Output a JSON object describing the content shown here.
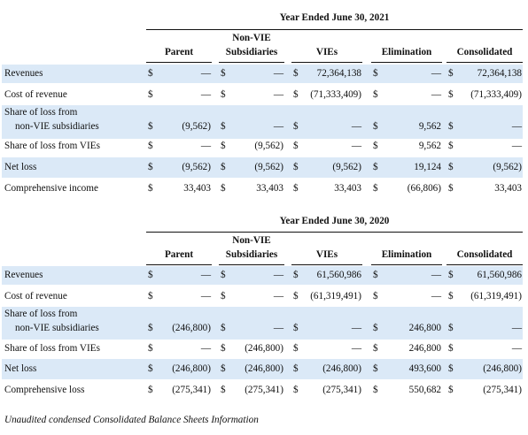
{
  "tables": [
    {
      "period": "Year Ended June 30, 2021",
      "columns": [
        {
          "label": "Parent"
        },
        {
          "label_lines": [
            "Non-VIE",
            "Subsidiaries"
          ]
        },
        {
          "label": "VIEs"
        },
        {
          "label": "Elimination"
        },
        {
          "label": "Consolidated"
        }
      ],
      "rows": [
        {
          "label": [
            "Revenues"
          ],
          "cells": [
            {
              "sym": "$",
              "val": "—"
            },
            {
              "sym": "$",
              "val": "—"
            },
            {
              "sym": "$",
              "val": "72,364,138"
            },
            {
              "sym": "$",
              "val": "—"
            },
            {
              "sym": "$",
              "val": "72,364,138"
            }
          ]
        },
        {
          "label": [
            "Cost of revenue"
          ],
          "cells": [
            {
              "sym": "$",
              "val": "—"
            },
            {
              "sym": "$",
              "val": "—"
            },
            {
              "sym": "$",
              "val": "(71,333,409)"
            },
            {
              "sym": "$",
              "val": "—"
            },
            {
              "sym": "$",
              "val": "(71,333,409)"
            }
          ]
        },
        {
          "label": [
            "Share of loss from",
            "non-VIE subsidiaries"
          ],
          "cells": [
            {
              "sym": "$",
              "val": "(9,562)"
            },
            {
              "sym": "$",
              "val": "—"
            },
            {
              "sym": "$",
              "val": "—"
            },
            {
              "sym": "$",
              "val": "9,562"
            },
            {
              "sym": "$",
              "val": "—"
            }
          ]
        },
        {
          "label": [
            "Share of loss from VIEs"
          ],
          "cells": [
            {
              "sym": "$",
              "val": "—"
            },
            {
              "sym": "$",
              "val": "(9,562)"
            },
            {
              "sym": "$",
              "val": "—"
            },
            {
              "sym": "$",
              "val": "9,562"
            },
            {
              "sym": "$",
              "val": "—"
            }
          ]
        },
        {
          "label": [
            "Net loss"
          ],
          "cells": [
            {
              "sym": "$",
              "val": "(9,562)"
            },
            {
              "sym": "$",
              "val": "(9,562)"
            },
            {
              "sym": "$",
              "val": "(9,562)"
            },
            {
              "sym": "$",
              "val": "19,124"
            },
            {
              "sym": "$",
              "val": "(9,562)"
            }
          ]
        },
        {
          "label": [
            "Comprehensive income"
          ],
          "cells": [
            {
              "sym": "$",
              "val": "33,403"
            },
            {
              "sym": "$",
              "val": "33,403"
            },
            {
              "sym": "$",
              "val": "33,403"
            },
            {
              "sym": "$",
              "val": "(66,806)"
            },
            {
              "sym": "$",
              "val": "33,403"
            }
          ]
        }
      ]
    },
    {
      "period": "Year Ended June 30, 2020",
      "columns": [
        {
          "label": "Parent"
        },
        {
          "label_lines": [
            "Non-VIE",
            "Subsidiaries"
          ]
        },
        {
          "label": "VIEs"
        },
        {
          "label": "Elimination"
        },
        {
          "label": "Consolidated"
        }
      ],
      "rows": [
        {
          "label": [
            "Revenues"
          ],
          "cells": [
            {
              "sym": "$",
              "val": "—"
            },
            {
              "sym": "$",
              "val": "—"
            },
            {
              "sym": "$",
              "val": "61,560,986"
            },
            {
              "sym": "$",
              "val": "—"
            },
            {
              "sym": "$",
              "val": "61,560,986"
            }
          ]
        },
        {
          "label": [
            "Cost of revenue"
          ],
          "cells": [
            {
              "sym": "$",
              "val": "—"
            },
            {
              "sym": "$",
              "val": "—"
            },
            {
              "sym": "$",
              "val": "(61,319,491)"
            },
            {
              "sym": "$",
              "val": "—"
            },
            {
              "sym": "$",
              "val": "(61,319,491)"
            }
          ]
        },
        {
          "label": [
            "Share of loss from",
            "non-VIE subsidiaries"
          ],
          "cells": [
            {
              "sym": "$",
              "val": "(246,800)"
            },
            {
              "sym": "$",
              "val": "—"
            },
            {
              "sym": "$",
              "val": "—"
            },
            {
              "sym": "$",
              "val": "246,800"
            },
            {
              "sym": "$",
              "val": "—"
            }
          ]
        },
        {
          "label": [
            "Share of loss from VIEs"
          ],
          "cells": [
            {
              "sym": "$",
              "val": "—"
            },
            {
              "sym": "$",
              "val": "(246,800)"
            },
            {
              "sym": "$",
              "val": "—"
            },
            {
              "sym": "$",
              "val": "246,800"
            },
            {
              "sym": "$",
              "val": "—"
            }
          ]
        },
        {
          "label": [
            "Net loss"
          ],
          "cells": [
            {
              "sym": "$",
              "val": "(246,800)"
            },
            {
              "sym": "$",
              "val": "(246,800)"
            },
            {
              "sym": "$",
              "val": "(246,800)"
            },
            {
              "sym": "$",
              "val": "493,600"
            },
            {
              "sym": "$",
              "val": "(246,800)"
            }
          ]
        },
        {
          "label": [
            "Comprehensive loss"
          ],
          "cells": [
            {
              "sym": "$",
              "val": "(275,341)"
            },
            {
              "sym": "$",
              "val": "(275,341)"
            },
            {
              "sym": "$",
              "val": "(275,341)"
            },
            {
              "sym": "$",
              "val": "550,682"
            },
            {
              "sym": "$",
              "val": "(275,341)"
            }
          ]
        }
      ]
    }
  ],
  "footer_note": "Unaudited condensed Consolidated Balance Sheets Information"
}
